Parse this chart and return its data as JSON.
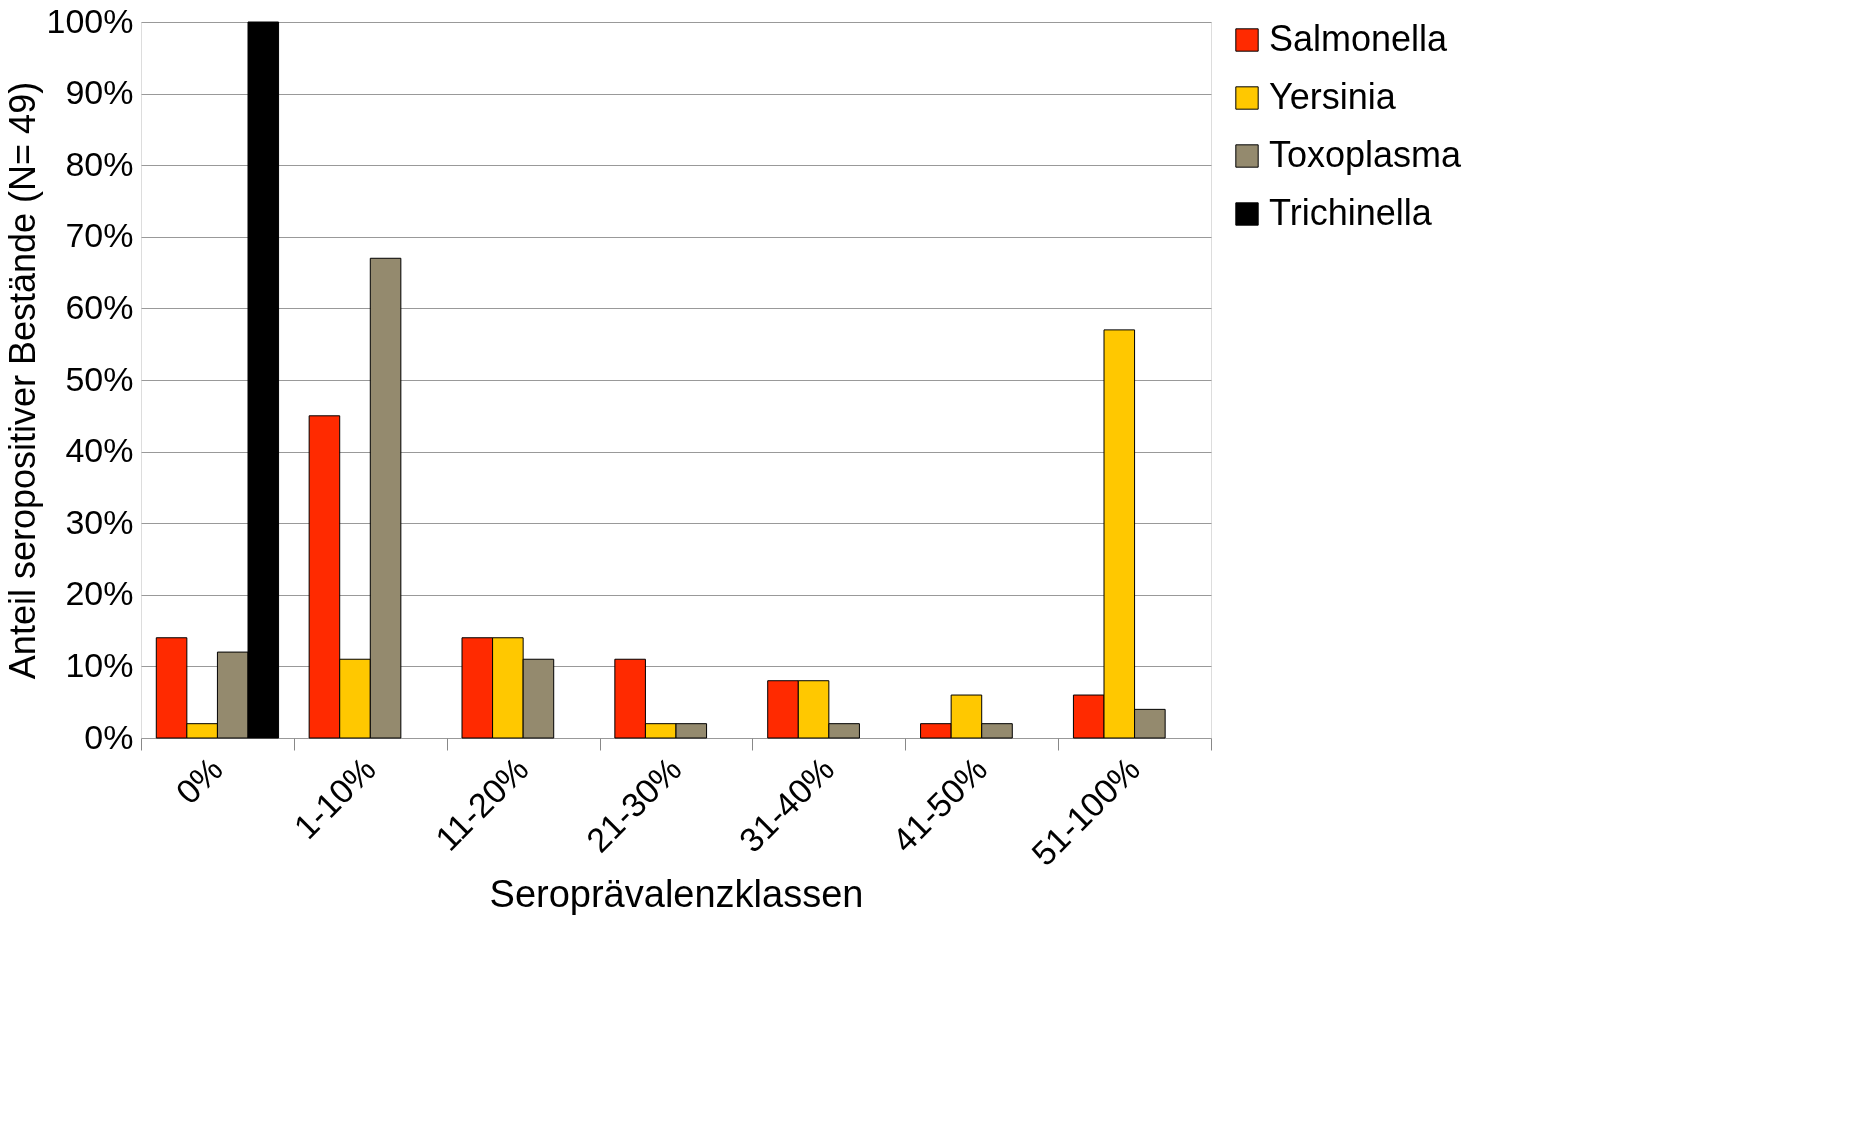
{
  "chart_data": {
    "type": "bar",
    "xlabel": "Seroprävalenzklassen",
    "ylabel": "Anteil seropositiver Bestände   (N= 49)",
    "categories": [
      "0%",
      "1-10%",
      "11-20%",
      "21-30%",
      "31-40%",
      "41-50%",
      "51-100%"
    ],
    "series": [
      {
        "name": "Salmonella",
        "color": "#ff2a00",
        "values": [
          14,
          45,
          14,
          11,
          8,
          2,
          6
        ]
      },
      {
        "name": "Yersinia",
        "color": "#ffc800",
        "values": [
          2,
          11,
          14,
          2,
          8,
          6,
          57
        ]
      },
      {
        "name": "Toxoplasma",
        "color": "#948a6e",
        "values": [
          12,
          67,
          11,
          2,
          2,
          2,
          4
        ]
      },
      {
        "name": "Trichinella",
        "color": "#000000",
        "values": [
          100,
          null,
          null,
          null,
          null,
          null,
          null
        ]
      }
    ],
    "ylim": [
      0,
      100
    ],
    "yticks": [
      {
        "value": 0,
        "label": "0%"
      },
      {
        "value": 10,
        "label": "10%"
      },
      {
        "value": 20,
        "label": "20%"
      },
      {
        "value": 30,
        "label": "30%"
      },
      {
        "value": 40,
        "label": "40%"
      },
      {
        "value": 50,
        "label": "50%"
      },
      {
        "value": 60,
        "label": "60%"
      },
      {
        "value": 70,
        "label": "70%"
      },
      {
        "value": 80,
        "label": "80%"
      },
      {
        "value": 90,
        "label": "90%"
      },
      {
        "value": 100,
        "label": "100%"
      }
    ],
    "grid": "y",
    "legend": "right"
  }
}
